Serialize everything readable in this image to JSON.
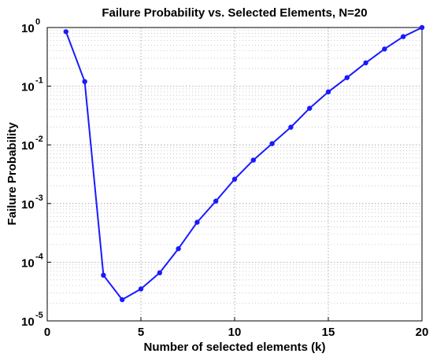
{
  "chart_data": {
    "type": "line",
    "title": "Failure Probability vs. Selected Elements, N=20",
    "xlabel": "Number of selected elements (k)",
    "ylabel": "Failure Probability",
    "xlim": [
      0,
      20
    ],
    "ylim": [
      1e-05,
      1
    ],
    "yscale": "log",
    "grid": true,
    "xticks": [
      "0",
      "5",
      "10",
      "15",
      "20"
    ],
    "yticks": [
      {
        "base": "10",
        "exp": "0"
      },
      {
        "base": "10",
        "exp": "-1"
      },
      {
        "base": "10",
        "exp": "-2"
      },
      {
        "base": "10",
        "exp": "-3"
      },
      {
        "base": "10",
        "exp": "-4"
      },
      {
        "base": "10",
        "exp": "-5"
      }
    ],
    "line_color": "#1a1aff",
    "series": [
      {
        "x": [
          1,
          2,
          3,
          4,
          5,
          6,
          7,
          8,
          9,
          10,
          11,
          12,
          13,
          14,
          15,
          16,
          17,
          18,
          19,
          20
        ],
        "y": [
          0.85,
          0.12,
          6e-05,
          2.3e-05,
          3.5e-05,
          6.6e-05,
          0.00017,
          0.00048,
          0.0011,
          0.0026,
          0.0055,
          0.0105,
          0.02,
          0.042,
          0.08,
          0.14,
          0.25,
          0.43,
          0.7,
          1.0
        ]
      }
    ]
  }
}
